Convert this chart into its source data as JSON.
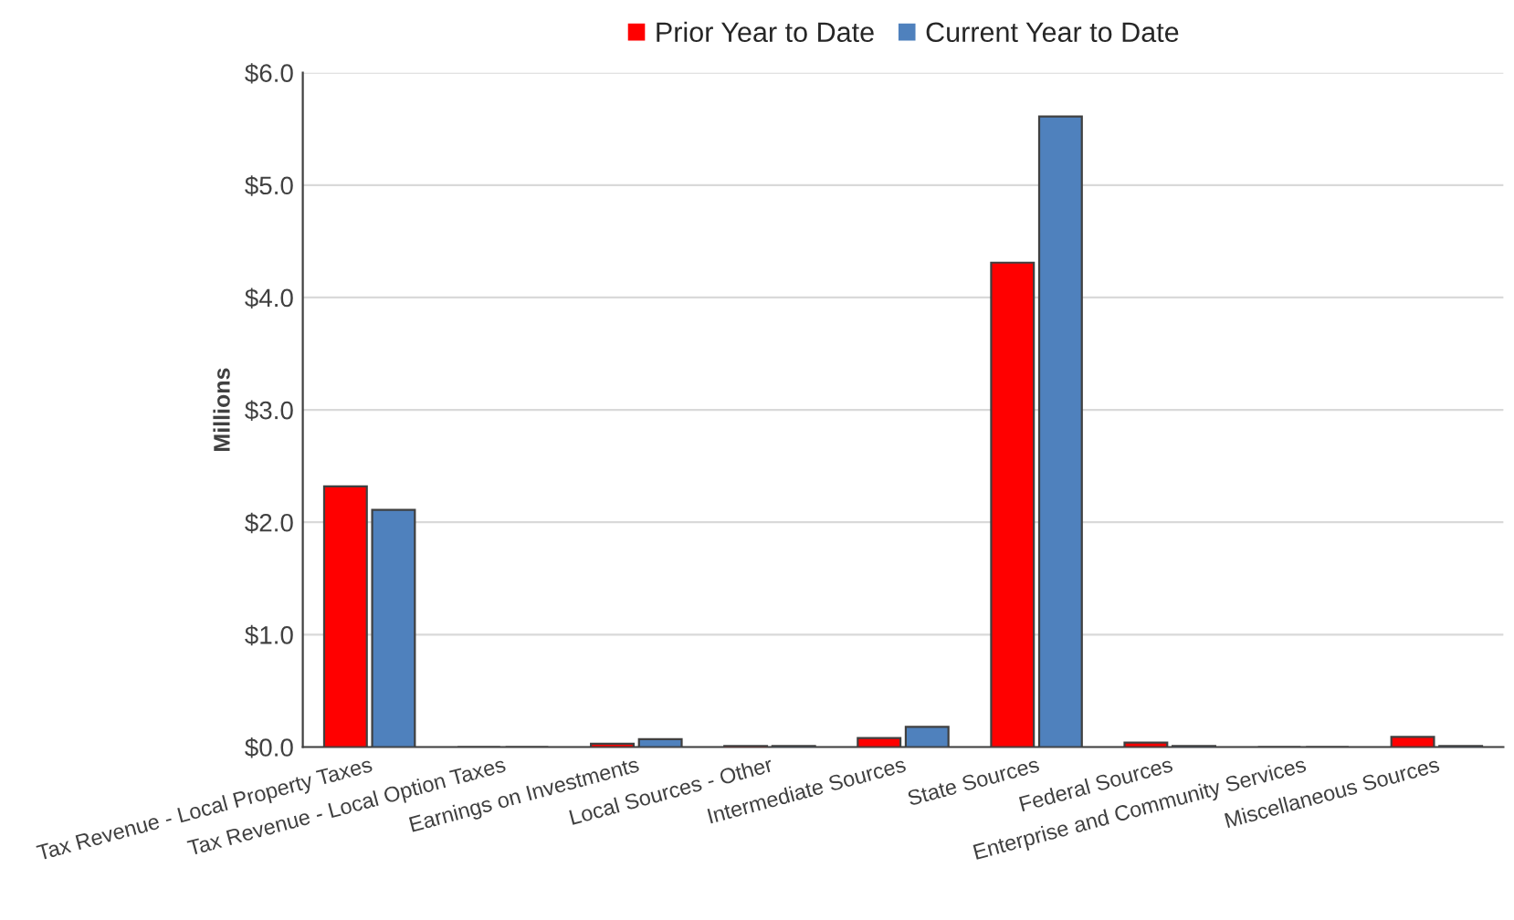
{
  "chart_data": {
    "type": "bar",
    "ylabel": "Millions",
    "categories": [
      "Tax Revenue - Local Property Taxes",
      "Tax Revenue - Local Option Taxes",
      "Earnings on Investments",
      "Local Sources - Other",
      "Intermediate Sources",
      "State Sources",
      "Federal Sources",
      "Enterprise and Community Services",
      "Miscellaneous Sources"
    ],
    "series": [
      {
        "name": "Prior Year to Date",
        "color": "#ff0000",
        "values": [
          2.32,
          0,
          0.03,
          0.01,
          0.08,
          4.31,
          0.04,
          0,
          0.09
        ]
      },
      {
        "name": "Current Year to Date",
        "color": "#4f81bd",
        "values": [
          2.11,
          0,
          0.07,
          0.01,
          0.18,
          5.61,
          0.01,
          0,
          0.01
        ]
      }
    ],
    "ylim": [
      0,
      6
    ],
    "yticks": [
      {
        "value": 0,
        "label": "$0.0"
      },
      {
        "value": 1,
        "label": "$1.0"
      },
      {
        "value": 2,
        "label": "$2.0"
      },
      {
        "value": 3,
        "label": "$3.0"
      },
      {
        "value": 4,
        "label": "$4.0"
      },
      {
        "value": 5,
        "label": "$5.0"
      },
      {
        "value": 6,
        "label": "$6.0"
      }
    ],
    "grid": "y",
    "legend": "top"
  }
}
